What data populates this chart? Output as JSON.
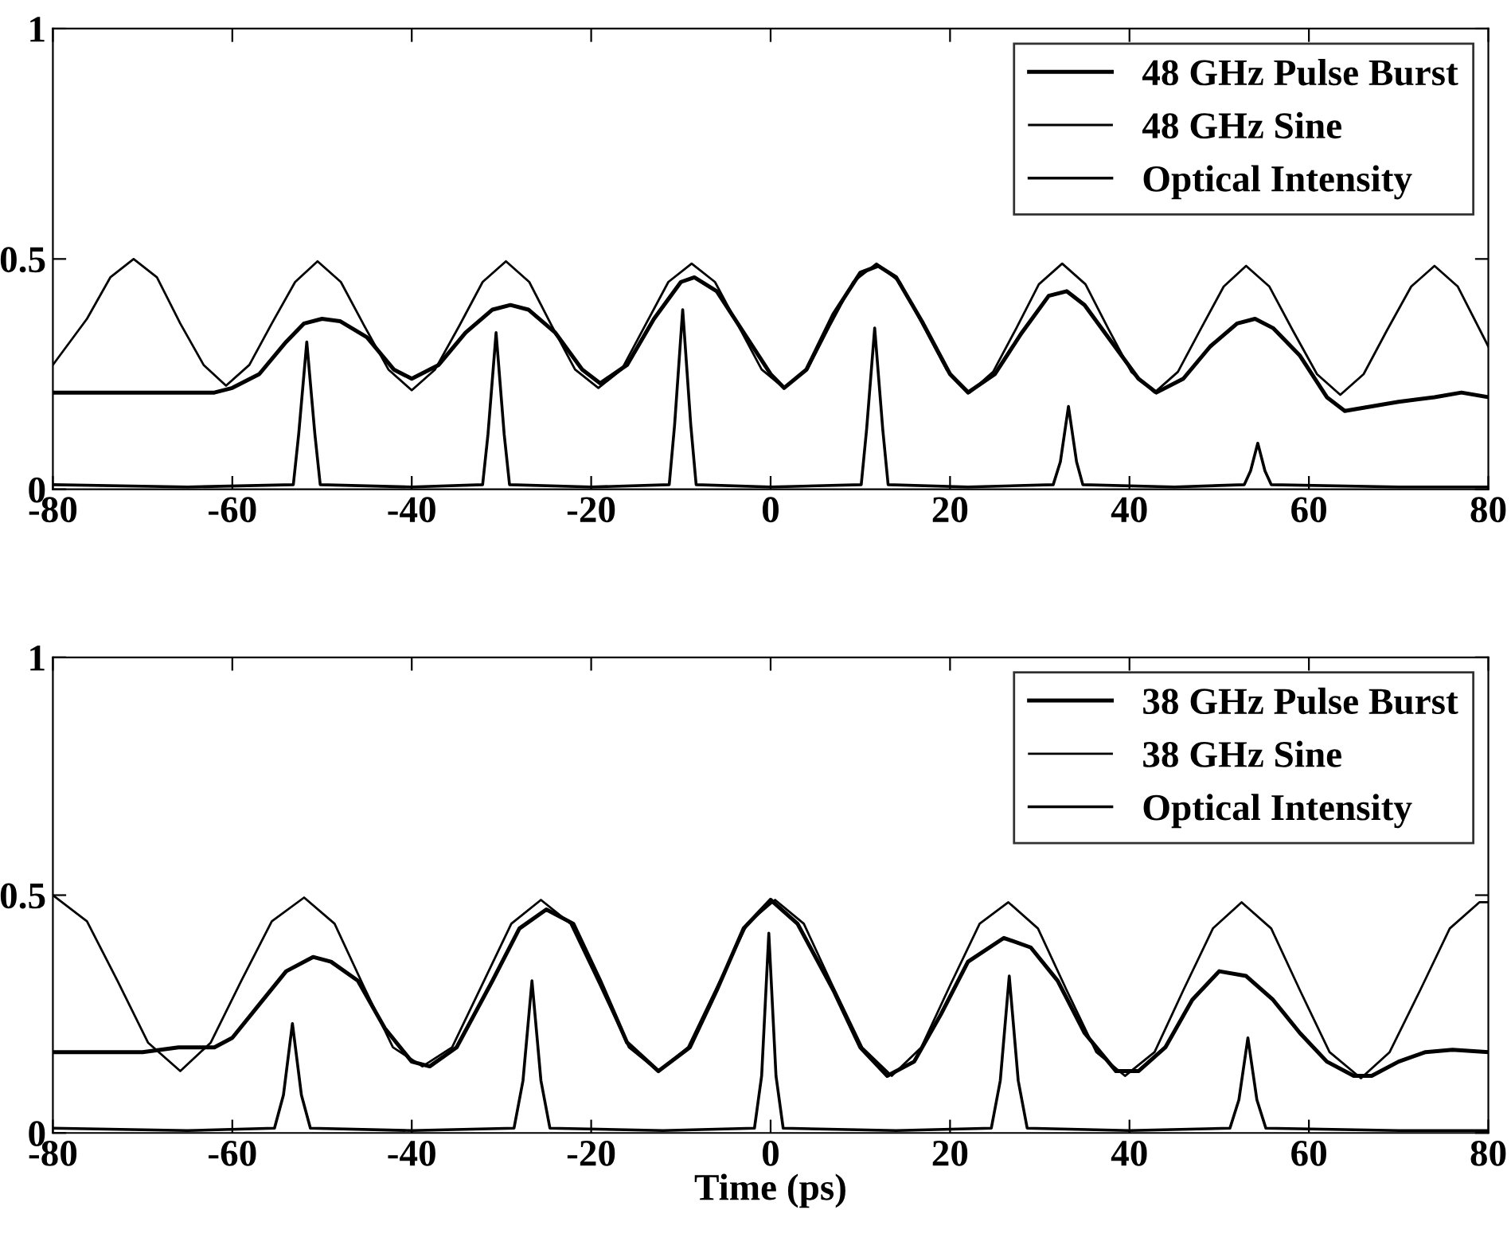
{
  "chart_data": [
    {
      "type": "line",
      "xlim": [
        -80,
        80
      ],
      "ylim": [
        0,
        1
      ],
      "xticks": [
        -80,
        -60,
        -40,
        -20,
        0,
        20,
        40,
        60,
        80
      ],
      "yticks": [
        0,
        0.5,
        1
      ],
      "grid": false,
      "legend": "top right",
      "series": [
        {
          "name": "48 GHz Pulse Burst",
          "color": "#000000",
          "x": [
            -80,
            -70,
            -62,
            -60,
            -57,
            -54,
            -52,
            -50,
            -48,
            -45,
            -42,
            -40,
            -37,
            -34,
            -31,
            -29,
            -27,
            -24,
            -21,
            -19,
            -16,
            -13,
            -10,
            -8.5,
            -6,
            -3,
            0,
            1.5,
            4,
            7,
            10,
            12,
            14,
            17,
            20,
            22,
            25,
            28,
            31,
            33,
            35,
            38,
            41,
            43,
            46,
            49,
            52,
            54,
            56,
            59,
            62,
            64,
            67,
            70,
            74,
            77,
            80
          ],
          "values": [
            0.21,
            0.21,
            0.21,
            0.22,
            0.25,
            0.32,
            0.36,
            0.37,
            0.365,
            0.33,
            0.26,
            0.24,
            0.27,
            0.34,
            0.39,
            0.4,
            0.39,
            0.34,
            0.26,
            0.23,
            0.27,
            0.37,
            0.45,
            0.46,
            0.43,
            0.34,
            0.25,
            0.22,
            0.26,
            0.38,
            0.47,
            0.485,
            0.46,
            0.36,
            0.25,
            0.21,
            0.25,
            0.34,
            0.42,
            0.43,
            0.4,
            0.32,
            0.24,
            0.21,
            0.24,
            0.31,
            0.36,
            0.37,
            0.35,
            0.29,
            0.2,
            0.17,
            0.18,
            0.19,
            0.2,
            0.21,
            0.2
          ]
        },
        {
          "name": "48 GHz Sine",
          "color": "#000000",
          "x": [
            -80,
            -76.2,
            -73.6,
            -71,
            -68.4,
            -65.8,
            -63.2,
            -60.7,
            -58.1,
            -55.6,
            -53,
            -50.5,
            -47.9,
            -45.3,
            -42.6,
            -40,
            -37.4,
            -34.7,
            -32.1,
            -29.5,
            -26.9,
            -24.4,
            -21.8,
            -19.2,
            -16.6,
            -14,
            -11.4,
            -8.8,
            -6.2,
            -3.6,
            -1,
            1.5,
            4.1,
            6.6,
            9.2,
            11.8,
            14.4,
            17,
            19.6,
            22.2,
            24.8,
            27.4,
            29.9,
            32.5,
            35.1,
            37.6,
            40.2,
            42.8,
            45.4,
            48,
            50.5,
            53,
            55.6,
            58.2,
            60.9,
            63.5,
            66.1,
            68.7,
            71.4,
            74,
            76.6,
            80
          ],
          "values": [
            0.27,
            0.37,
            0.46,
            0.5,
            0.46,
            0.36,
            0.27,
            0.225,
            0.27,
            0.36,
            0.45,
            0.495,
            0.45,
            0.355,
            0.26,
            0.215,
            0.26,
            0.355,
            0.45,
            0.495,
            0.45,
            0.355,
            0.26,
            0.22,
            0.26,
            0.355,
            0.45,
            0.49,
            0.45,
            0.355,
            0.26,
            0.22,
            0.26,
            0.355,
            0.45,
            0.49,
            0.45,
            0.355,
            0.26,
            0.21,
            0.255,
            0.35,
            0.445,
            0.49,
            0.445,
            0.35,
            0.255,
            0.21,
            0.255,
            0.35,
            0.44,
            0.485,
            0.44,
            0.345,
            0.25,
            0.205,
            0.25,
            0.345,
            0.44,
            0.485,
            0.44,
            0.31
          ]
        },
        {
          "name": "Optical Intensity",
          "color": "#000000",
          "x": [
            -80,
            -65,
            -53.2,
            -52.6,
            -51.7,
            -50.8,
            -50.2,
            -40,
            -32.1,
            -31.5,
            -30.6,
            -29.7,
            -29.1,
            -20,
            -11.3,
            -10.7,
            -9.8,
            -8.9,
            -8.3,
            0,
            10.1,
            10.7,
            11.6,
            12.5,
            13.1,
            22,
            31.5,
            32.3,
            33.2,
            34.1,
            34.8,
            45,
            52.8,
            53.5,
            54.3,
            55.1,
            55.8,
            70,
            80
          ],
          "values": [
            0.01,
            0.005,
            0.01,
            0.12,
            0.32,
            0.12,
            0.01,
            0.005,
            0.01,
            0.12,
            0.34,
            0.12,
            0.01,
            0.005,
            0.01,
            0.14,
            0.39,
            0.14,
            0.01,
            0.005,
            0.01,
            0.13,
            0.35,
            0.13,
            0.01,
            0.005,
            0.01,
            0.06,
            0.18,
            0.06,
            0.01,
            0.005,
            0.01,
            0.04,
            0.1,
            0.04,
            0.01,
            0.005,
            0.005
          ]
        }
      ]
    },
    {
      "type": "line",
      "xlabel": "Time (ps)",
      "xlim": [
        -80,
        80
      ],
      "ylim": [
        0,
        1
      ],
      "xticks": [
        -80,
        -60,
        -40,
        -20,
        0,
        20,
        40,
        60,
        80
      ],
      "yticks": [
        0,
        0.5,
        1
      ],
      "grid": false,
      "legend": "top right",
      "series": [
        {
          "name": "38 GHz Pulse Burst",
          "color": "#000000",
          "x": [
            -80,
            -70,
            -66,
            -62,
            -60,
            -57,
            -54,
            -51,
            -49,
            -46,
            -43,
            -40,
            -38,
            -35,
            -31,
            -28,
            -25,
            -22,
            -19,
            -16,
            -12.5,
            -9,
            -6,
            -3,
            0,
            3,
            7,
            10,
            13,
            16,
            19,
            22,
            26,
            29,
            32,
            35,
            38.5,
            41,
            44,
            47,
            50,
            53,
            56,
            59,
            62,
            65,
            67,
            70,
            73,
            76,
            80
          ],
          "values": [
            0.17,
            0.17,
            0.18,
            0.18,
            0.2,
            0.27,
            0.34,
            0.37,
            0.36,
            0.32,
            0.22,
            0.15,
            0.14,
            0.18,
            0.32,
            0.43,
            0.47,
            0.44,
            0.32,
            0.19,
            0.13,
            0.18,
            0.3,
            0.43,
            0.49,
            0.44,
            0.3,
            0.18,
            0.12,
            0.15,
            0.25,
            0.36,
            0.41,
            0.39,
            0.32,
            0.21,
            0.13,
            0.13,
            0.18,
            0.28,
            0.34,
            0.33,
            0.28,
            0.21,
            0.15,
            0.12,
            0.12,
            0.15,
            0.17,
            0.175,
            0.17
          ]
        },
        {
          "name": "38 GHz Sine",
          "color": "#000000",
          "x": [
            -80,
            -76.2,
            -72.8,
            -69.4,
            -65.8,
            -62.4,
            -59,
            -55.6,
            -52,
            -48.6,
            -45.4,
            -42.1,
            -38.8,
            -35.5,
            -32.2,
            -28.9,
            -25.6,
            -22.3,
            -19,
            -15.8,
            -12.5,
            -9.2,
            -5.9,
            -2.6,
            0.5,
            3.7,
            6.9,
            10.2,
            13.5,
            16.8,
            20,
            23.3,
            26.5,
            29.8,
            33,
            36.3,
            39.5,
            42.8,
            46,
            49.3,
            52.5,
            55.8,
            59,
            62.3,
            65.8,
            69,
            72.4,
            75.7,
            79,
            80
          ],
          "values": [
            0.5,
            0.445,
            0.32,
            0.19,
            0.13,
            0.19,
            0.32,
            0.445,
            0.495,
            0.44,
            0.31,
            0.18,
            0.14,
            0.18,
            0.31,
            0.44,
            0.49,
            0.44,
            0.31,
            0.18,
            0.13,
            0.18,
            0.31,
            0.44,
            0.49,
            0.44,
            0.31,
            0.18,
            0.12,
            0.18,
            0.31,
            0.44,
            0.485,
            0.43,
            0.3,
            0.17,
            0.12,
            0.17,
            0.3,
            0.43,
            0.485,
            0.43,
            0.3,
            0.17,
            0.115,
            0.17,
            0.3,
            0.43,
            0.485,
            0.485
          ]
        },
        {
          "name": "Optical Intensity",
          "color": "#000000",
          "x": [
            -80,
            -65,
            -55.3,
            -54.3,
            -53.3,
            -52.3,
            -51.3,
            -40,
            -28.6,
            -27.6,
            -26.6,
            -25.6,
            -24.6,
            -12,
            -1.8,
            -1,
            -0.2,
            0.6,
            1.4,
            14,
            24.6,
            25.6,
            26.6,
            27.6,
            28.6,
            40,
            51.2,
            52.2,
            53.2,
            54.2,
            55.2,
            70,
            80
          ],
          "values": [
            0.01,
            0.005,
            0.01,
            0.08,
            0.23,
            0.08,
            0.01,
            0.005,
            0.01,
            0.11,
            0.32,
            0.11,
            0.01,
            0.005,
            0.01,
            0.12,
            0.42,
            0.12,
            0.01,
            0.005,
            0.01,
            0.11,
            0.33,
            0.11,
            0.01,
            0.005,
            0.01,
            0.07,
            0.2,
            0.07,
            0.01,
            0.005,
            0.005
          ]
        }
      ]
    }
  ]
}
